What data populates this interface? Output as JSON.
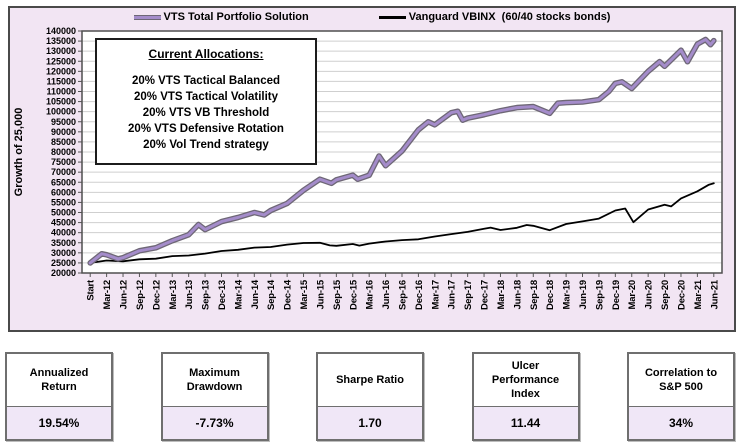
{
  "colors": {
    "panel_bg": "#f2e5f3",
    "plot_bg": "#ffffff",
    "gridline": "#cfcfcf",
    "plot_border": "#4f4f4f",
    "vts_purple": "#a48cca",
    "vts_halo": "#6e6776",
    "vbinx_black": "#000000",
    "stat_value_bg": "#f0e7f7"
  },
  "allocations": {
    "title": "Current Allocations:",
    "items": [
      "20% VTS Tactical Balanced",
      "20% VTS Tactical Volatility",
      "20% VTS VB Threshold",
      "20% VTS Defensive Rotation",
      "20% Vol Trend strategy"
    ]
  },
  "stats": [
    {
      "label": "Annualized Return",
      "value": "19.54%"
    },
    {
      "label": "Maximum Drawdown",
      "value": "-7.73%"
    },
    {
      "label": "Sharpe Ratio",
      "value": "1.70"
    },
    {
      "label": "Ulcer Performance Index",
      "value": "11.44"
    },
    {
      "label": "Correlation to S&P 500",
      "value": "34%"
    }
  ],
  "chart_data": {
    "type": "line",
    "title": "",
    "xlabel": "",
    "ylabel": "Growth of 25,000",
    "ylim": [
      20000,
      140000
    ],
    "ytick_step": 5000,
    "grid": true,
    "legend_position": "top",
    "x_labels": [
      "Start",
      "Mar-12",
      "Jun-12",
      "Sep-12",
      "Dec-12",
      "Mar-13",
      "Jun-13",
      "Sep-13",
      "Dec-13",
      "Mar-14",
      "Jun-14",
      "Sep-14",
      "Dec-14",
      "Mar-15",
      "Jun-15",
      "Sep-15",
      "Dec-15",
      "Mar-16",
      "Jun-16",
      "Sep-16",
      "Dec-16",
      "Mar-17",
      "Jun-17",
      "Sep-17",
      "Dec-17",
      "Mar-18",
      "Jun-18",
      "Sep-18",
      "Dec-18",
      "Mar-19",
      "Jun-19",
      "Sep-19",
      "Dec-19",
      "Mar-20",
      "Jun-20",
      "Sep-20",
      "Dec-20",
      "Mar-21",
      "Jun-21"
    ],
    "series": [
      {
        "name": "VTS Total Portfolio Solution",
        "color": "#a48cca",
        "halo": "#6e6776",
        "width": 3,
        "points": [
          [
            0,
            25000
          ],
          [
            0.7,
            29500
          ],
          [
            1,
            29000
          ],
          [
            1.7,
            27000
          ],
          [
            2,
            27600
          ],
          [
            3,
            31000
          ],
          [
            4,
            32500
          ],
          [
            5,
            36000
          ],
          [
            6,
            39000
          ],
          [
            6.6,
            44000
          ],
          [
            7,
            41500
          ],
          [
            8,
            45500
          ],
          [
            9,
            47500
          ],
          [
            10,
            50000
          ],
          [
            10.6,
            48800
          ],
          [
            11,
            51000
          ],
          [
            12,
            54500
          ],
          [
            13,
            61000
          ],
          [
            14,
            66500
          ],
          [
            14.7,
            64500
          ],
          [
            15,
            66200
          ],
          [
            16,
            68500
          ],
          [
            16.3,
            66500
          ],
          [
            17,
            68500
          ],
          [
            17.6,
            78000
          ],
          [
            18,
            73200
          ],
          [
            19,
            80500
          ],
          [
            20,
            91000
          ],
          [
            20.6,
            95000
          ],
          [
            21,
            93500
          ],
          [
            22,
            99500
          ],
          [
            22.4,
            100200
          ],
          [
            22.7,
            95800
          ],
          [
            23,
            96800
          ],
          [
            24,
            98500
          ],
          [
            25,
            100500
          ],
          [
            26,
            102000
          ],
          [
            27,
            102500
          ],
          [
            28,
            99200
          ],
          [
            28.5,
            104200
          ],
          [
            29,
            104500
          ],
          [
            30,
            104800
          ],
          [
            31,
            106000
          ],
          [
            31.6,
            110000
          ],
          [
            32,
            114000
          ],
          [
            32.4,
            114800
          ],
          [
            33,
            111500
          ],
          [
            34,
            120000
          ],
          [
            34.7,
            124800
          ],
          [
            35,
            122500
          ],
          [
            36,
            130500
          ],
          [
            36.4,
            124800
          ],
          [
            37,
            133500
          ],
          [
            37.5,
            135800
          ],
          [
            37.8,
            133200
          ],
          [
            38,
            135200
          ]
        ]
      },
      {
        "name": "Vanguard VBINX  (60/40 stocks bonds)",
        "color": "#000000",
        "halo": null,
        "width": 1.8,
        "points": [
          [
            0,
            25000
          ],
          [
            1,
            26200
          ],
          [
            2,
            25800
          ],
          [
            3,
            26800
          ],
          [
            4,
            27100
          ],
          [
            5,
            28400
          ],
          [
            6,
            28700
          ],
          [
            7,
            29600
          ],
          [
            8,
            30900
          ],
          [
            9,
            31500
          ],
          [
            10,
            32600
          ],
          [
            11,
            32900
          ],
          [
            12,
            34100
          ],
          [
            13,
            34900
          ],
          [
            14,
            35000
          ],
          [
            14.6,
            33700
          ],
          [
            15,
            33500
          ],
          [
            16,
            34400
          ],
          [
            16.4,
            33600
          ],
          [
            17,
            34600
          ],
          [
            18,
            35600
          ],
          [
            19,
            36300
          ],
          [
            20,
            36700
          ],
          [
            21,
            38100
          ],
          [
            22,
            39300
          ],
          [
            23,
            40400
          ],
          [
            24,
            41900
          ],
          [
            24.4,
            42500
          ],
          [
            25,
            41300
          ],
          [
            26,
            42400
          ],
          [
            26.6,
            43800
          ],
          [
            27,
            43400
          ],
          [
            28,
            41200
          ],
          [
            29,
            44300
          ],
          [
            30,
            45600
          ],
          [
            31,
            47000
          ],
          [
            32,
            51000
          ],
          [
            32.6,
            52000
          ],
          [
            33.1,
            45200
          ],
          [
            34,
            51500
          ],
          [
            35,
            53800
          ],
          [
            35.4,
            53000
          ],
          [
            36,
            57000
          ],
          [
            37,
            60500
          ],
          [
            37.7,
            63800
          ],
          [
            38,
            64500
          ]
        ]
      }
    ]
  }
}
